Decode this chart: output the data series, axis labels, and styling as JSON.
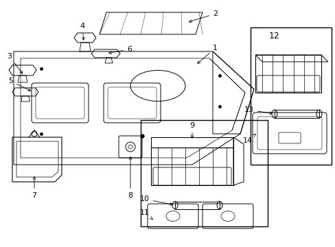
{
  "background_color": "#ffffff",
  "fig_width": 4.89,
  "fig_height": 3.6,
  "dpi": 100,
  "label_fontsize": 8,
  "lw": 0.7
}
